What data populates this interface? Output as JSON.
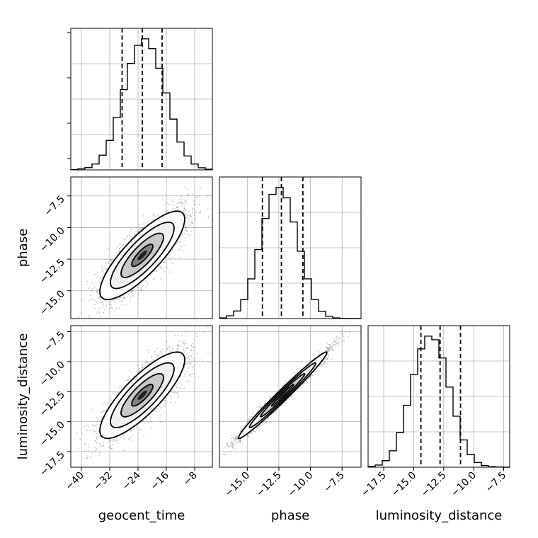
{
  "chart_data": {
    "type": "corner",
    "title": "",
    "parameters": [
      "geocent_time",
      "phase",
      "luminosity_distance"
    ],
    "axis_labels": [
      "geocent_time",
      "phase",
      "luminosity_distance"
    ],
    "ranges": {
      "geocent_time": [
        -43,
        -3
      ],
      "phase": [
        -17.2,
        -6.0
      ],
      "luminosity_distance": [
        -18.8,
        -7.0
      ]
    },
    "ticks": {
      "geocent_time": {
        "values": [
          -40,
          -32,
          -24,
          -16,
          -8
        ],
        "labels": [
          "−40",
          "−32",
          "−24",
          "−16",
          "−8"
        ]
      },
      "phase": {
        "values": [
          -15.0,
          -12.5,
          -10.0,
          -7.5
        ],
        "labels": [
          "−15.0",
          "−12.5",
          "−10.0",
          "−7.5"
        ]
      },
      "luminosity_distance": {
        "values": [
          -17.5,
          -15.0,
          -12.5,
          -10.0,
          -7.5
        ],
        "labels": [
          "−17.5",
          "−15.0",
          "−12.5",
          "−10.0",
          "−7.5"
        ]
      }
    },
    "grid": true,
    "histograms": [
      {
        "parameter": "geocent_time",
        "bin_edges": [
          -43,
          -41,
          -39,
          -37,
          -35,
          -33,
          -31,
          -29,
          -27,
          -25,
          -23,
          -21,
          -19,
          -17,
          -15,
          -13,
          -11,
          -9,
          -7,
          -5,
          -3
        ],
        "counts": [
          2,
          6,
          14,
          36,
          90,
          180,
          320,
          490,
          650,
          760,
          800,
          740,
          620,
          470,
          310,
          170,
          85,
          36,
          13,
          4
        ],
        "quantiles": [
          -28.5,
          -22.8,
          -17.2
        ]
      },
      {
        "parameter": "phase",
        "bin_edges": [
          -17.2,
          -16.64,
          -16.08,
          -15.52,
          -14.96,
          -14.4,
          -13.84,
          -13.28,
          -12.72,
          -12.16,
          -11.6,
          -11.04,
          -10.48,
          -9.92,
          -9.36,
          -8.8,
          -8.24,
          -7.68,
          -7.12,
          -6.56,
          -6.0
        ],
        "counts": [
          4,
          16,
          44,
          110,
          230,
          400,
          580,
          720,
          760,
          700,
          560,
          390,
          230,
          110,
          42,
          13,
          4,
          1,
          0,
          0
        ],
        "quantiles": [
          -13.8,
          -12.3,
          -10.6
        ]
      },
      {
        "parameter": "luminosity_distance",
        "bin_edges": [
          -18.8,
          -18.21,
          -17.62,
          -17.03,
          -16.44,
          -15.85,
          -15.26,
          -14.67,
          -14.08,
          -13.49,
          -12.9,
          -12.31,
          -11.72,
          -11.13,
          -10.54,
          -9.95,
          -9.36,
          -8.77,
          -8.18,
          -7.59,
          -7.0
        ],
        "counts": [
          4,
          12,
          36,
          90,
          190,
          340,
          510,
          650,
          720,
          700,
          600,
          440,
          280,
          150,
          70,
          26,
          9,
          3,
          1,
          0
        ],
        "quantiles": [
          -14.4,
          -12.8,
          -11.1
        ]
      }
    ],
    "joint": [
      {
        "x": "geocent_time",
        "y": "phase",
        "mean": [
          -22.8,
          -12.2
        ],
        "sd": [
          6.0,
          1.75
        ],
        "corr": 0.82,
        "scatter_extent": [
          [
            -42,
            -3
          ],
          [
            -17,
            -6.3
          ]
        ],
        "contour_sigmas": [
          0.5,
          1.0,
          1.5,
          2.0
        ]
      },
      {
        "x": "geocent_time",
        "y": "luminosity_distance",
        "mean": [
          -22.8,
          -12.8
        ],
        "sd": [
          6.0,
          1.8
        ],
        "corr": 0.82,
        "scatter_extent": [
          [
            -42,
            -3
          ],
          [
            -18.5,
            -7.2
          ]
        ],
        "contour_sigmas": [
          0.5,
          1.0,
          1.5,
          2.0
        ]
      },
      {
        "x": "phase",
        "y": "luminosity_distance",
        "mean": [
          -12.2,
          -12.8
        ],
        "sd": [
          1.75,
          1.8
        ],
        "corr": 0.985,
        "scatter_extent": [
          [
            -17,
            -6.3
          ],
          [
            -18.5,
            -7.2
          ]
        ],
        "contour_sigmas": [
          0.5,
          1.0,
          1.5,
          2.0
        ]
      }
    ]
  }
}
